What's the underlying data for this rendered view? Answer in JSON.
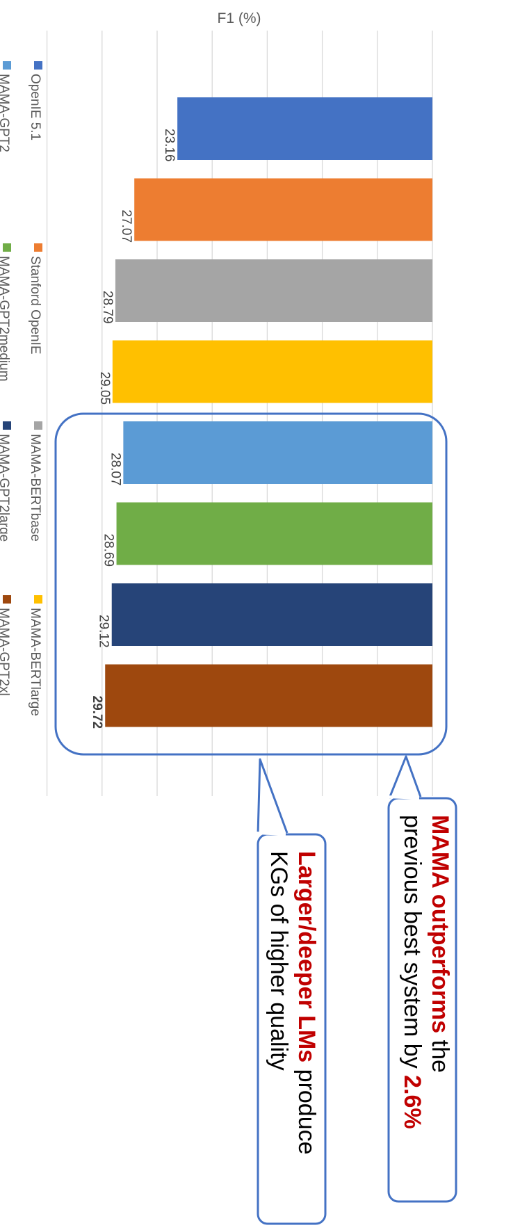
{
  "chart_data": {
    "type": "bar",
    "orientation": "horizontal",
    "xlabel": "F1 (%)",
    "xlim": [
      0,
      35
    ],
    "grid": true,
    "legend_position": "left",
    "categories": [
      "OpenIE 5.1",
      "Stanford OpenIE",
      "MAMA-BERTbase",
      "MAMA-BERTlarge",
      "MAMA-GPT2",
      "MAMA-GPT2medium",
      "MAMA-GPT2large",
      "MAMA-GPT2xl"
    ],
    "values": [
      23.16,
      27.07,
      28.79,
      29.05,
      28.07,
      28.69,
      29.12,
      29.72
    ],
    "data_labels": [
      "23.16",
      "27.07",
      "28.79",
      "29.05",
      "28.07",
      "28.69",
      "29.12",
      "29.72"
    ],
    "bold_label_index": 7,
    "colors": [
      "#4472c4",
      "#ed7d31",
      "#a5a5a5",
      "#ffc000",
      "#5b9bd5",
      "#70ad47",
      "#264478",
      "#9e480e"
    ],
    "callouts": [
      {
        "parts": [
          {
            "text": "MAMA outperforms",
            "emph": true
          },
          {
            "text": " the",
            "emph": false
          },
          {
            "text": "previous best system by ",
            "emph": false,
            "newline": true
          },
          {
            "text": "2.6%",
            "emph": true
          }
        ]
      },
      {
        "parts": [
          {
            "text": "Larger/deeper LMs",
            "emph": true
          },
          {
            "text": " produce",
            "emph": false
          },
          {
            "text": "KGs of higher quality",
            "emph": false,
            "newline": true
          }
        ]
      }
    ]
  }
}
